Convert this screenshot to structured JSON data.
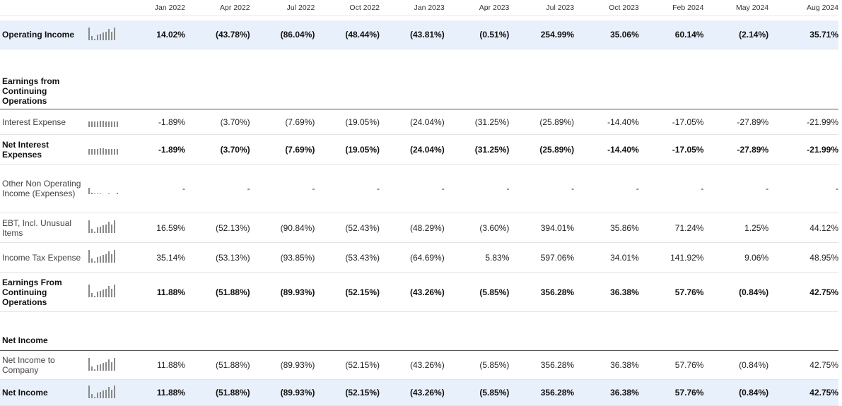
{
  "columns": [
    "Jan 2022",
    "Apr 2022",
    "Jul 2022",
    "Oct 2022",
    "Jan 2023",
    "Apr 2023",
    "Jul 2023",
    "Oct 2023",
    "Feb 2024",
    "May 2024",
    "Aug 2024"
  ],
  "rows": {
    "operating_income": {
      "label": "Operating Income",
      "values": [
        "14.02%",
        "(43.78%)",
        "(86.04%)",
        "(48.44%)",
        "(43.81%)",
        "(0.51%)",
        "254.99%",
        "35.06%",
        "60.14%",
        "(2.14%)",
        "35.71%"
      ]
    },
    "earnings_continuing_header": {
      "label": "Earnings from Continuing Operations"
    },
    "interest_expense": {
      "label": "Interest Expense",
      "values": [
        "-1.89%",
        "(3.70%)",
        "(7.69%)",
        "(19.05%)",
        "(24.04%)",
        "(31.25%)",
        "(25.89%)",
        "-14.40%",
        "-17.05%",
        "-27.89%",
        "-21.99%"
      ]
    },
    "net_interest_expenses": {
      "label": "Net Interest Expenses",
      "values": [
        "-1.89%",
        "(3.70%)",
        "(7.69%)",
        "(19.05%)",
        "(24.04%)",
        "(31.25%)",
        "(25.89%)",
        "-14.40%",
        "-17.05%",
        "-27.89%",
        "-21.99%"
      ]
    },
    "other_non_operating": {
      "label": "Other Non Operating Income (Expenses)",
      "values": [
        "-",
        "-",
        "-",
        "-",
        "-",
        "-",
        "-",
        "-",
        "-",
        "-",
        "-"
      ]
    },
    "ebt_incl_unusual": {
      "label": "EBT, Incl. Unusual Items",
      "values": [
        "16.59%",
        "(52.13%)",
        "(90.84%)",
        "(52.43%)",
        "(48.29%)",
        "(3.60%)",
        "394.01%",
        "35.86%",
        "71.24%",
        "1.25%",
        "44.12%"
      ]
    },
    "income_tax_expense": {
      "label": "Income Tax Expense",
      "values": [
        "35.14%",
        "(53.13%)",
        "(93.85%)",
        "(53.43%)",
        "(64.69%)",
        "5.83%",
        "597.06%",
        "34.01%",
        "141.92%",
        "9.06%",
        "48.95%"
      ]
    },
    "earnings_from_continuing": {
      "label": "Earnings From Continuing Operations",
      "values": [
        "11.88%",
        "(51.88%)",
        "(89.93%)",
        "(52.15%)",
        "(43.26%)",
        "(5.85%)",
        "356.28%",
        "36.38%",
        "57.76%",
        "(0.84%)",
        "42.75%"
      ]
    },
    "net_income_header": {
      "label": "Net Income"
    },
    "net_income_to_company": {
      "label": "Net Income to Company",
      "values": [
        "11.88%",
        "(51.88%)",
        "(89.93%)",
        "(52.15%)",
        "(43.26%)",
        "(5.85%)",
        "356.28%",
        "36.38%",
        "57.76%",
        "(0.84%)",
        "42.75%"
      ]
    },
    "net_income": {
      "label": "Net Income",
      "values": [
        "11.88%",
        "(51.88%)",
        "(89.93%)",
        "(52.15%)",
        "(43.26%)",
        "(5.85%)",
        "356.28%",
        "36.38%",
        "57.76%",
        "(0.84%)",
        "42.75%"
      ]
    }
  }
}
